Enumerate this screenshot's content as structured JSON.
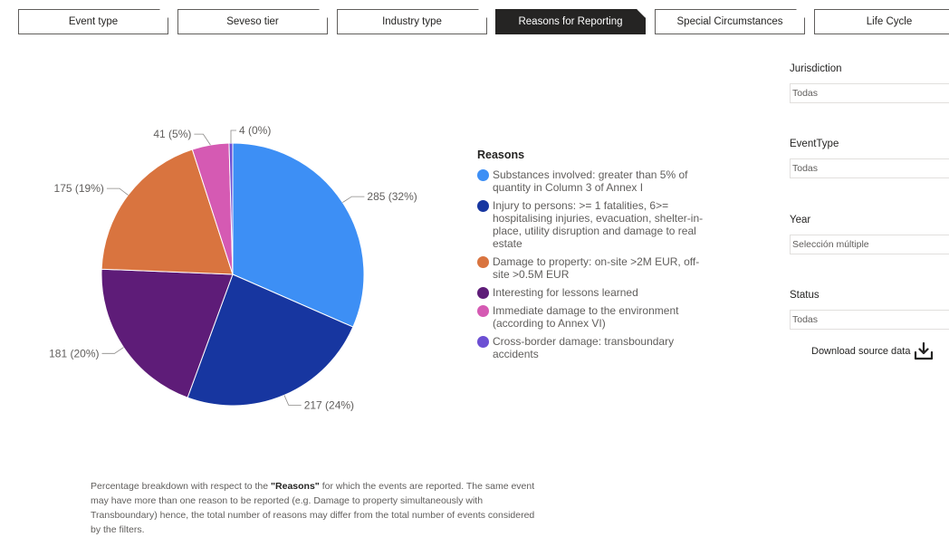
{
  "tabs": [
    {
      "label": "Event type",
      "active": false
    },
    {
      "label": "Seveso tier",
      "active": false
    },
    {
      "label": "Industry type",
      "active": false
    },
    {
      "label": "Reasons for Reporting",
      "active": true
    },
    {
      "label": "Special Circumstances",
      "active": false
    },
    {
      "label": "Life Cycle",
      "active": false
    }
  ],
  "chart_data": {
    "type": "pie",
    "legend_title": "Reasons",
    "legend_placement": "right",
    "slices": [
      {
        "label": "Substances involved: greater than 5% of quantity in Column 3 of Annex I",
        "value": 285,
        "display": "285 (32%)",
        "color": "#3d8ff5"
      },
      {
        "label": "Injury to persons: >= 1 fatalities, 6>= hospitalising injuries, evacuation, shelter-in-place, utility disruption and damage to real estate",
        "value": 217,
        "display": "217 (24%)",
        "color": "#1736a0"
      },
      {
        "label": "Interesting for lessons learned",
        "value": 181,
        "display": "181 (20%)",
        "color": "#5e1c78"
      },
      {
        "label": "Damage to property: on-site >2M EUR, off-site >0.5M EUR",
        "value": 175,
        "display": "175 (19%)",
        "color": "#d9743f"
      },
      {
        "label": "Immediate damage to the environment (according to Annex VI)",
        "value": 41,
        "display": "41 (5%)",
        "color": "#d55ab3"
      },
      {
        "label": "Cross-border damage: transboundary accidents",
        "value": 4,
        "display": "4 (0%)",
        "color": "#6c4fd3"
      }
    ]
  },
  "legend": {
    "title": "Reasons",
    "items": [
      {
        "label": "Substances involved: greater than 5% of quantity in Column 3 of Annex I",
        "color": "#3d8ff5"
      },
      {
        "label": "Injury to persons: >= 1 fatalities, 6>= hospitalising injuries, evacuation, shelter-in-place, utility disruption and damage to real estate",
        "color": "#1736a0"
      },
      {
        "label": "Damage to property: on-site >2M EUR, off-site >0.5M EUR",
        "color": "#d9743f"
      },
      {
        "label": "Interesting for lessons learned",
        "color": "#5e1c78"
      },
      {
        "label": "Immediate damage to the environment (according to Annex VI)",
        "color": "#d55ab3"
      },
      {
        "label": "Cross-border damage: transboundary accidents",
        "color": "#6c4fd3"
      }
    ]
  },
  "slicers": {
    "jurisdiction": {
      "label": "Jurisdiction",
      "value": "Todas"
    },
    "event_type": {
      "label": "EventType",
      "value": "Todas"
    },
    "year": {
      "label": "Year",
      "value": "Selección múltiple"
    },
    "status": {
      "label": "Status",
      "value": "Todas"
    }
  },
  "download": {
    "label": "Download source data",
    "icon": "download-icon"
  },
  "footnote": {
    "prefix": "Percentage breakdown with respect to the ",
    "bold": "\"Reasons\"",
    "suffix": " for which the events are reported. The same event may have more than one reason to be reported (e.g. Damage to property simultaneously with Transboundary) hence, the total number of reasons may differ from the total number of events considered by the filters."
  }
}
